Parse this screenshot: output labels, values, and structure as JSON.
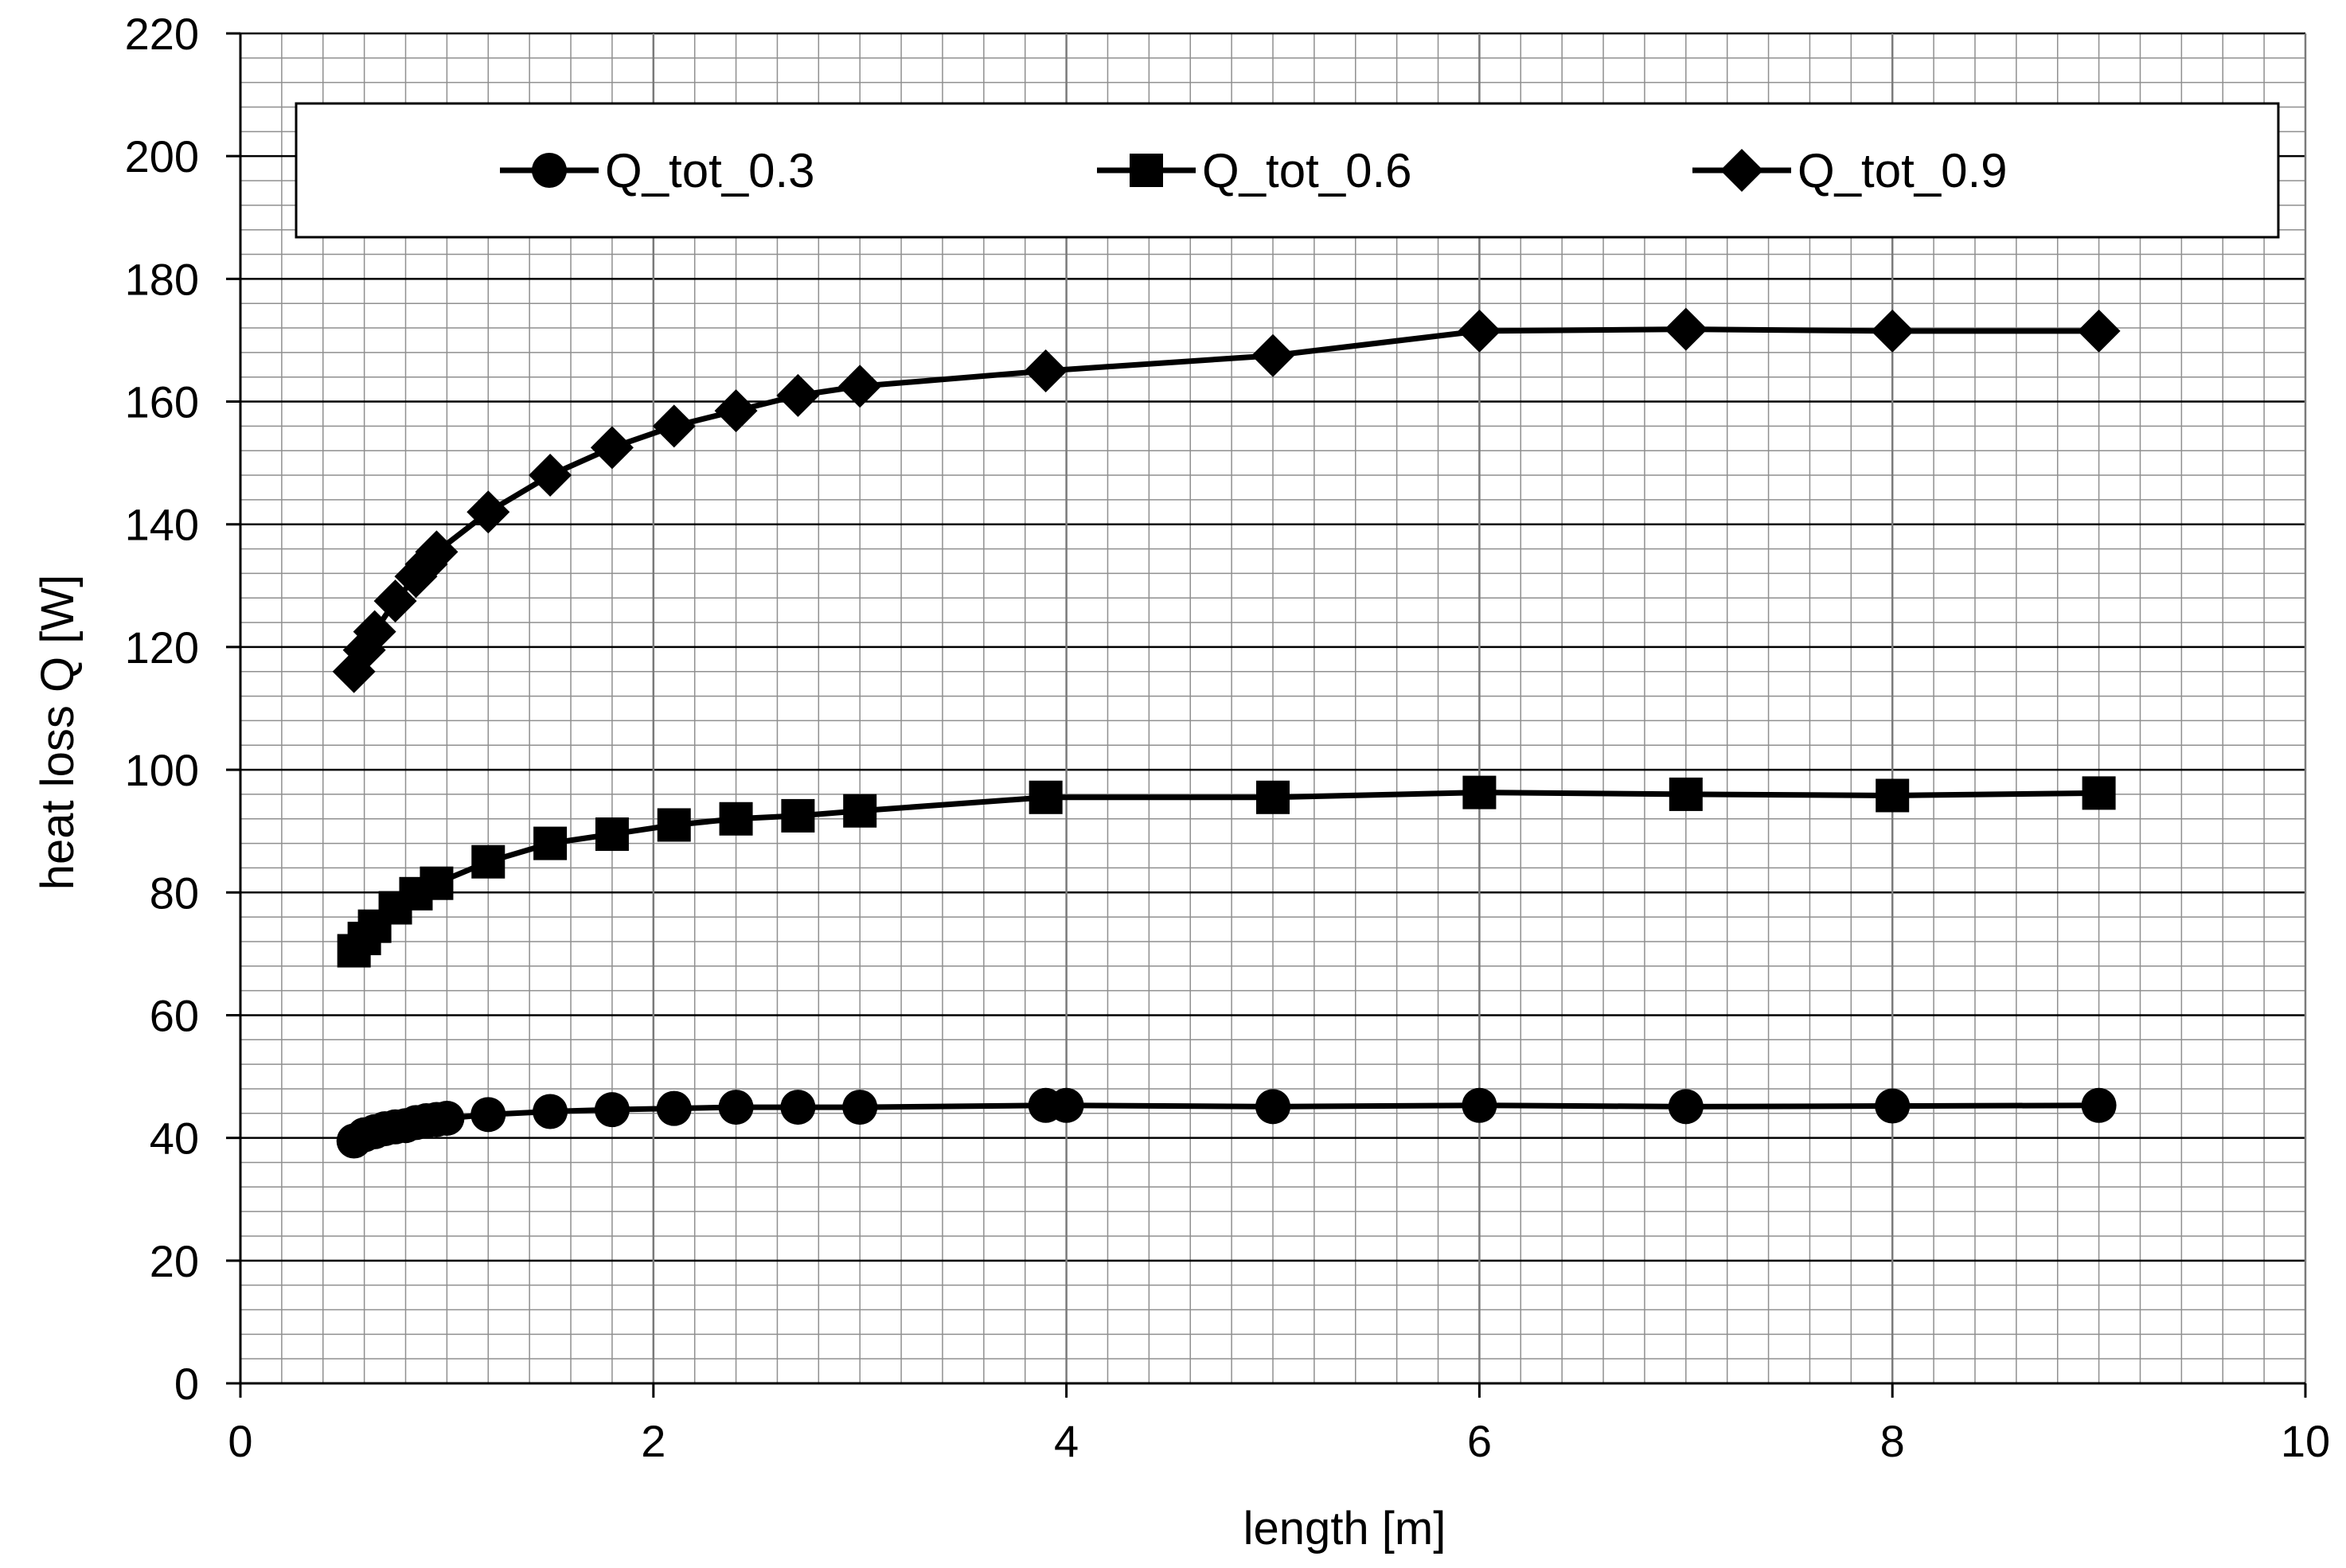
{
  "chart_data": {
    "type": "line",
    "title": "",
    "xlabel": "length [m]",
    "ylabel": "heat loss Q [W]",
    "xlim": [
      0,
      10
    ],
    "ylim": [
      0,
      220
    ],
    "x_ticks": [
      "0",
      "2",
      "4",
      "6",
      "8",
      "10"
    ],
    "y_ticks": [
      "0",
      "20",
      "40",
      "60",
      "80",
      "100",
      "120",
      "140",
      "160",
      "180",
      "200",
      "220"
    ],
    "grid": true,
    "legend_position": "top",
    "series": [
      {
        "name": "Q_tot_0.3",
        "marker": "circle",
        "color": "#000000",
        "x": [
          0.55,
          0.6,
          0.65,
          0.7,
          0.75,
          0.8,
          0.85,
          0.9,
          0.95,
          1.0,
          1.2,
          1.5,
          1.8,
          2.1,
          2.4,
          2.7,
          3.0,
          3.9,
          4.0,
          5.0,
          6.0,
          7.0,
          8.0,
          9.0
        ],
        "y": [
          39.5,
          40.5,
          41.0,
          41.5,
          41.8,
          42.0,
          42.5,
          42.8,
          43.0,
          43.2,
          43.8,
          44.3,
          44.6,
          44.8,
          45.0,
          45.0,
          45.0,
          45.3,
          45.3,
          45.1,
          45.3,
          45.1,
          45.2,
          45.3
        ]
      },
      {
        "name": "Q_tot_0.6",
        "marker": "square",
        "color": "#000000",
        "x": [
          0.55,
          0.6,
          0.65,
          0.75,
          0.85,
          0.95,
          1.2,
          1.5,
          1.8,
          2.1,
          2.4,
          2.7,
          3.0,
          3.9,
          5.0,
          6.0,
          7.0,
          8.0,
          9.0
        ],
        "y": [
          70.5,
          72.5,
          74.5,
          77.5,
          79.8,
          81.5,
          85.0,
          88.0,
          89.5,
          91.0,
          92.0,
          92.5,
          93.3,
          95.5,
          95.5,
          96.3,
          96.0,
          95.8,
          96.2
        ]
      },
      {
        "name": "Q_tot_0.9",
        "marker": "diamond",
        "color": "#000000",
        "x": [
          0.55,
          0.6,
          0.65,
          0.75,
          0.85,
          0.9,
          0.95,
          1.2,
          1.5,
          1.8,
          2.1,
          2.4,
          2.7,
          3.0,
          3.9,
          5.0,
          6.0,
          7.0,
          8.0,
          9.0
        ],
        "y": [
          116,
          119.5,
          122.5,
          127.5,
          131.5,
          133.5,
          135.5,
          142,
          148,
          152.5,
          156,
          158.5,
          161,
          162.5,
          165,
          167.5,
          171.5,
          171.8,
          171.5,
          171.5
        ]
      }
    ]
  }
}
